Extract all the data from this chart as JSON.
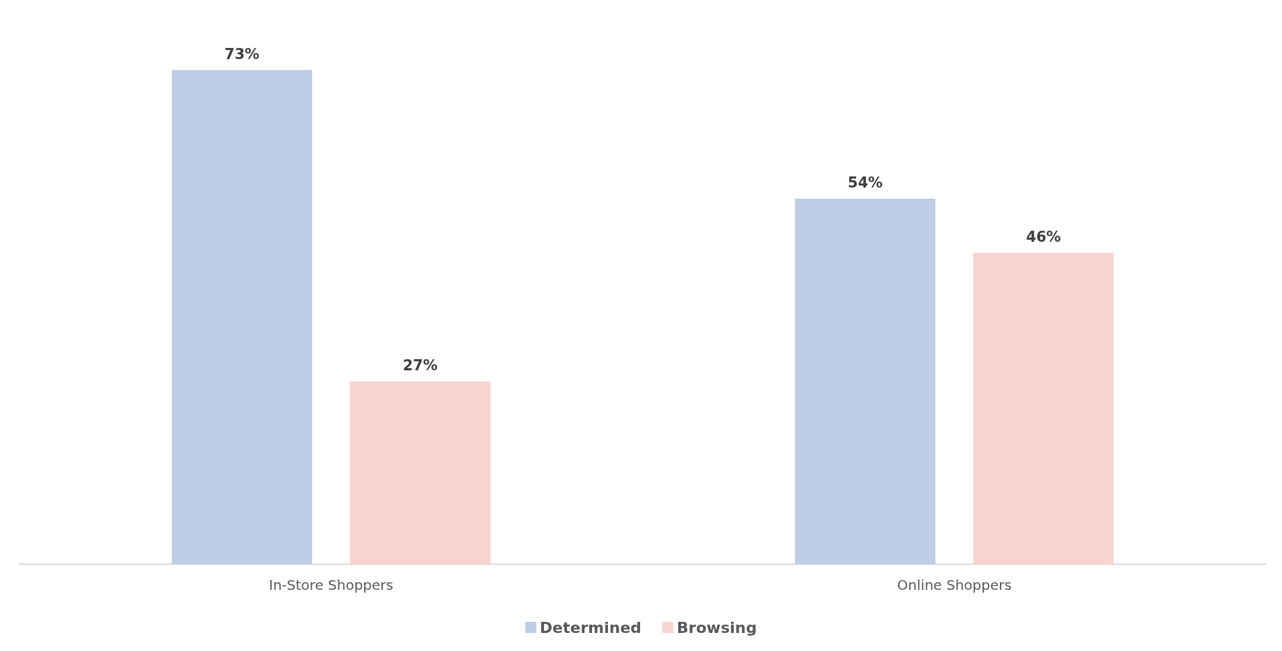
{
  "chart_data": {
    "type": "bar",
    "categories": [
      "In-Store Shoppers",
      "Online Shoppers"
    ],
    "series": [
      {
        "name": "Determined",
        "color": "#bccde5",
        "values": [
          73,
          54
        ],
        "value_labels": [
          "73%",
          "54%"
        ]
      },
      {
        "name": "Browsing",
        "color": "#f8d3cf",
        "values": [
          27,
          46
        ],
        "value_labels": [
          "27%",
          "46%"
        ]
      }
    ],
    "legend": "bottom"
  }
}
